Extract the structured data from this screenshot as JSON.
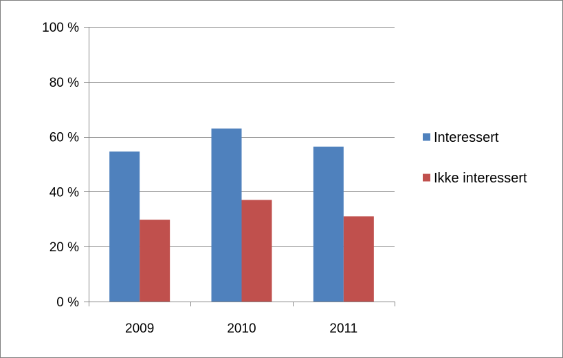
{
  "chart_data": {
    "type": "bar",
    "title": "",
    "xlabel": "",
    "ylabel": "",
    "categories": [
      "2009",
      "2010",
      "2011"
    ],
    "series": [
      {
        "name": "Interessert",
        "color": "#4f81bd",
        "values": [
          54.6,
          63.0,
          56.4
        ]
      },
      {
        "name": "Ikke interessert",
        "color": "#c0504d",
        "values": [
          29.8,
          37.0,
          31.0
        ]
      }
    ],
    "ylim": [
      0,
      100
    ],
    "y_ticks": [
      0,
      20,
      40,
      60,
      80,
      100
    ],
    "y_tick_labels": [
      "0 %",
      "20 %",
      "40 %",
      "60 %",
      "80 %",
      "100 %"
    ],
    "grid": true,
    "legend_position": "right"
  }
}
